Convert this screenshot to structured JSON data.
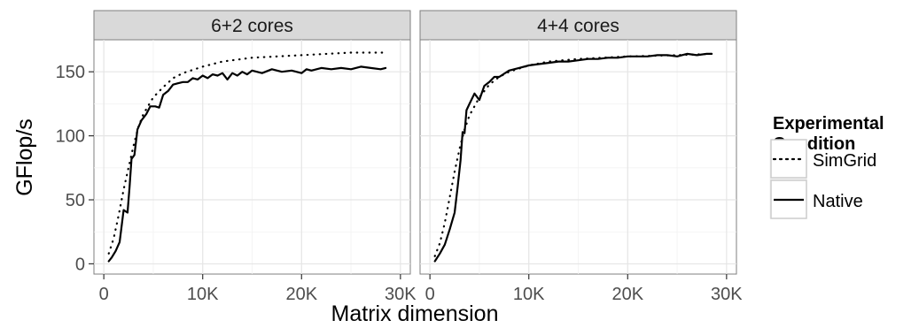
{
  "chart_data": {
    "type": "line",
    "xlabel": "Matrix dimension",
    "ylabel": "GFlop/s",
    "xlim": [
      -1000,
      31000
    ],
    "ylim": [
      -8,
      175
    ],
    "x_ticks": [
      0,
      10000,
      20000,
      30000
    ],
    "x_tick_labels": [
      "0",
      "10K",
      "20K",
      "30K"
    ],
    "y_ticks": [
      0,
      50,
      100,
      150
    ],
    "y_tick_labels": [
      "0",
      "50",
      "100",
      "150"
    ],
    "grid": true,
    "legend": {
      "title": "Experimental Condition",
      "title_lines": [
        "Experimental",
        "Condition"
      ],
      "position": "right",
      "entries": [
        {
          "name": "SimGrid",
          "style": "dotted"
        },
        {
          "name": "Native",
          "style": "solid"
        }
      ]
    },
    "panels": [
      {
        "title": "6+2 cores",
        "series": [
          {
            "name": "SimGrid",
            "style": "dotted",
            "points": [
              [
                500,
                8
              ],
              [
                1000,
                20
              ],
              [
                1500,
                38
              ],
              [
                2000,
                58
              ],
              [
                2500,
                75
              ],
              [
                3000,
                92
              ],
              [
                3500,
                107
              ],
              [
                4000,
                117
              ],
              [
                5000,
                130
              ],
              [
                6000,
                138
              ],
              [
                7000,
                145
              ],
              [
                8000,
                149
              ],
              [
                10000,
                154
              ],
              [
                12000,
                158
              ],
              [
                15000,
                161
              ],
              [
                20000,
                163
              ],
              [
                25000,
                165
              ],
              [
                28500,
                165
              ]
            ]
          },
          {
            "name": "Native",
            "style": "solid",
            "points": [
              [
                500,
                2
              ],
              [
                800,
                5
              ],
              [
                1200,
                10
              ],
              [
                1600,
                17
              ],
              [
                2000,
                42
              ],
              [
                2400,
                40
              ],
              [
                2600,
                60
              ],
              [
                2800,
                82
              ],
              [
                3100,
                85
              ],
              [
                3400,
                105
              ],
              [
                3800,
                112
              ],
              [
                4300,
                117
              ],
              [
                4700,
                123
              ],
              [
                5200,
                123
              ],
              [
                5600,
                122
              ],
              [
                6000,
                132
              ],
              [
                6500,
                135
              ],
              [
                7000,
                140
              ],
              [
                7500,
                141
              ],
              [
                8000,
                142
              ],
              [
                8500,
                142
              ],
              [
                9000,
                145
              ],
              [
                9500,
                144
              ],
              [
                10000,
                147
              ],
              [
                10500,
                145
              ],
              [
                11000,
                148
              ],
              [
                11500,
                147
              ],
              [
                12000,
                149
              ],
              [
                12500,
                144
              ],
              [
                13000,
                149
              ],
              [
                13500,
                147
              ],
              [
                14000,
                150
              ],
              [
                14500,
                148
              ],
              [
                15000,
                151
              ],
              [
                16000,
                149
              ],
              [
                17000,
                152
              ],
              [
                18000,
                150
              ],
              [
                19000,
                151
              ],
              [
                20000,
                149
              ],
              [
                20500,
                152
              ],
              [
                21000,
                151
              ],
              [
                22000,
                153
              ],
              [
                23000,
                152
              ],
              [
                24000,
                153
              ],
              [
                25000,
                152
              ],
              [
                26000,
                154
              ],
              [
                27000,
                153
              ],
              [
                28000,
                152
              ],
              [
                28500,
                153
              ]
            ]
          }
        ]
      },
      {
        "title": "4+4 cores",
        "series": [
          {
            "name": "SimGrid",
            "style": "dotted",
            "points": [
              [
                500,
                6
              ],
              [
                1000,
                16
              ],
              [
                1500,
                32
              ],
              [
                2000,
                52
              ],
              [
                2500,
                72
              ],
              [
                3000,
                90
              ],
              [
                3500,
                105
              ],
              [
                4000,
                116
              ],
              [
                5000,
                130
              ],
              [
                6000,
                140
              ],
              [
                7000,
                146
              ],
              [
                8000,
                150
              ],
              [
                10000,
                155
              ],
              [
                12000,
                158
              ],
              [
                15000,
                160
              ],
              [
                20000,
                162
              ],
              [
                25000,
                163
              ],
              [
                28500,
                164
              ]
            ]
          },
          {
            "name": "Native",
            "style": "solid",
            "points": [
              [
                500,
                2
              ],
              [
                1000,
                8
              ],
              [
                1500,
                15
              ],
              [
                2000,
                27
              ],
              [
                2500,
                40
              ],
              [
                2800,
                60
              ],
              [
                3100,
                81
              ],
              [
                3300,
                103
              ],
              [
                3500,
                102
              ],
              [
                3700,
                120
              ],
              [
                4000,
                125
              ],
              [
                4500,
                133
              ],
              [
                5000,
                128
              ],
              [
                5500,
                139
              ],
              [
                6000,
                142
              ],
              [
                6500,
                146
              ],
              [
                7000,
                146
              ],
              [
                8000,
                151
              ],
              [
                9000,
                153
              ],
              [
                10000,
                155
              ],
              [
                11000,
                156
              ],
              [
                12000,
                157
              ],
              [
                13000,
                158
              ],
              [
                14000,
                158
              ],
              [
                15000,
                159
              ],
              [
                16000,
                160
              ],
              [
                17000,
                160
              ],
              [
                18000,
                161
              ],
              [
                19000,
                161
              ],
              [
                20000,
                162
              ],
              [
                21000,
                162
              ],
              [
                22000,
                162
              ],
              [
                23000,
                163
              ],
              [
                24000,
                163
              ],
              [
                25000,
                162
              ],
              [
                26000,
                164
              ],
              [
                27000,
                163
              ],
              [
                28000,
                164
              ],
              [
                28500,
                164
              ]
            ]
          }
        ]
      }
    ]
  }
}
